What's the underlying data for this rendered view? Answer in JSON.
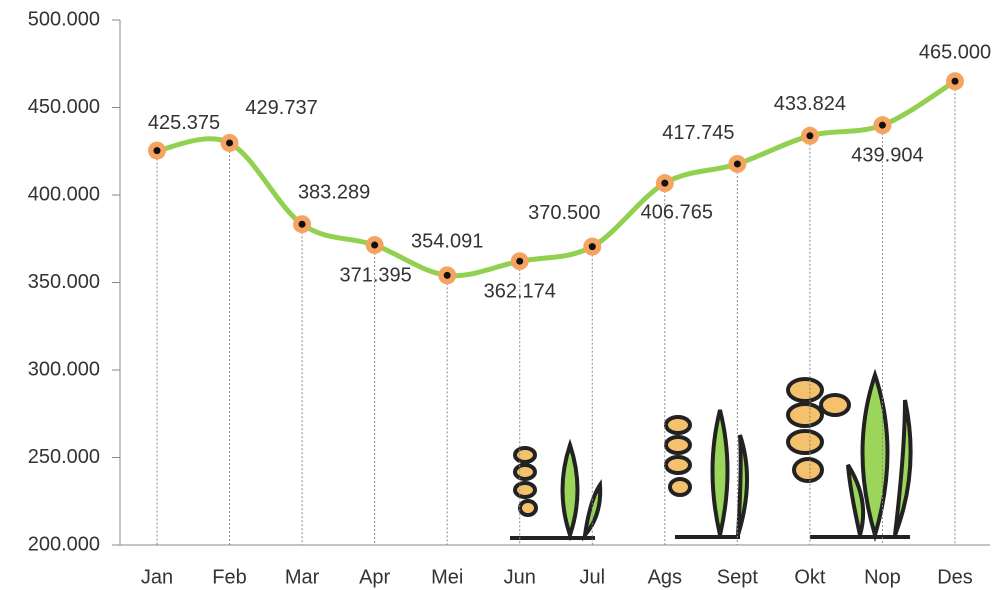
{
  "chart_data": {
    "type": "line",
    "categories": [
      "Jan",
      "Feb",
      "Mar",
      "Apr",
      "Mei",
      "Jun",
      "Jul",
      "Ags",
      "Sept",
      "Okt",
      "Nop",
      "Des"
    ],
    "series": [
      {
        "color": "#92d050",
        "marker_color": "#f4a460",
        "values": [
          425375,
          429737,
          383289,
          371395,
          354091,
          362174,
          370500,
          406765,
          417745,
          433824,
          439904,
          465000
        ],
        "value_labels": [
          "425.375",
          "429.737",
          "383.289",
          "371.395",
          "354.091",
          "362.174",
          "370.500",
          "406.765",
          "417.745",
          "433.824",
          "439.904",
          "465.000"
        ]
      }
    ],
    "ylim": [
      200000,
      500000
    ],
    "yticks": [
      {
        "value": 200000,
        "label": "200.000"
      },
      {
        "value": 250000,
        "label": "250.000"
      },
      {
        "value": 300000,
        "label": "300.000"
      },
      {
        "value": 350000,
        "label": "350.000"
      },
      {
        "value": 400000,
        "label": "400.000"
      },
      {
        "value": 450000,
        "label": "450.000"
      },
      {
        "value": 500000,
        "label": "500.000"
      }
    ],
    "drop_lines": true
  }
}
